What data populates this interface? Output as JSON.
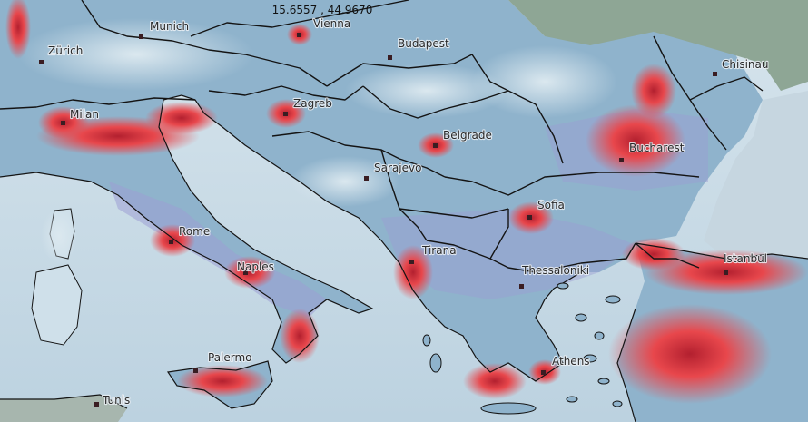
{
  "coordinates": "15.6557 , 44.9670",
  "colors": {
    "sea": "#c9dbe6",
    "land_base": "#8fb3cc",
    "low_density": "#a9c7da",
    "high_density": "#e8474c",
    "peak_density": "#9d1a28",
    "mid_density": "#9c9ed3",
    "border": "#141414",
    "relief": "#8ea695"
  },
  "cities": [
    {
      "name": "Munich",
      "id": "munich"
    },
    {
      "name": "Vienna",
      "id": "vienna"
    },
    {
      "name": "Zürich",
      "id": "zurich"
    },
    {
      "name": "Budapest",
      "id": "budapest"
    },
    {
      "name": "Chisinau",
      "id": "chisinau"
    },
    {
      "name": "Milan",
      "id": "milan"
    },
    {
      "name": "Zagreb",
      "id": "zagreb"
    },
    {
      "name": "Belgrade",
      "id": "belgrade"
    },
    {
      "name": "Bucharest",
      "id": "bucharest"
    },
    {
      "name": "Sarajevo",
      "id": "sarajevo"
    },
    {
      "name": "Sofia",
      "id": "sofia"
    },
    {
      "name": "Rome",
      "id": "rome"
    },
    {
      "name": "Tirana",
      "id": "tirana"
    },
    {
      "name": "Istanbul",
      "id": "istanbul"
    },
    {
      "name": "Naples",
      "id": "naples"
    },
    {
      "name": "Thessaloniki",
      "id": "thessaloniki"
    },
    {
      "name": "Palermo",
      "id": "palermo"
    },
    {
      "name": "Athens",
      "id": "athens"
    },
    {
      "name": "Tunis",
      "id": "tunis"
    }
  ]
}
